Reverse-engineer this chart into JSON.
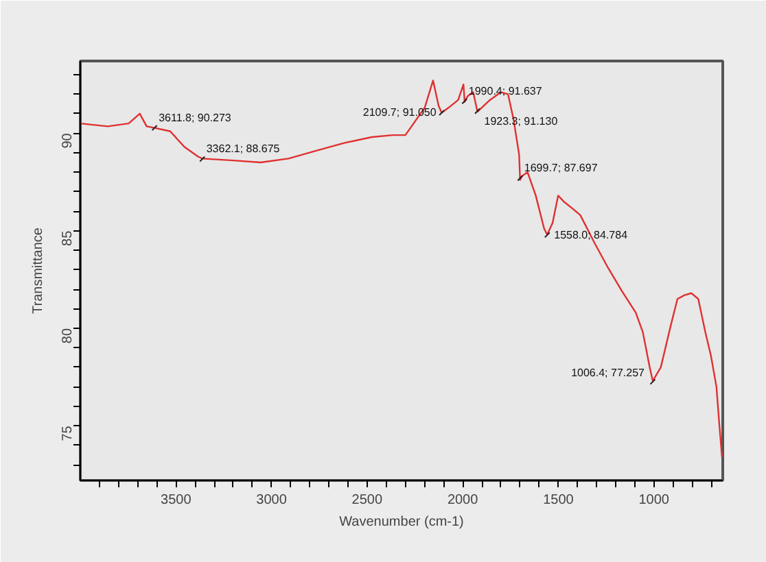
{
  "chart_data": {
    "type": "line",
    "xlabel": "Wavenumber (cm-1)",
    "ylabel": "Transmittance",
    "xlim": [
      4000,
      640
    ],
    "ylim": [
      72.2,
      93.7
    ],
    "xticks": [
      {
        "value": 3900,
        "label": null
      },
      {
        "value": 3800,
        "label": null
      },
      {
        "value": 3700,
        "label": null
      },
      {
        "value": 3600,
        "label": null
      },
      3500,
      {
        "value": 3400,
        "label": null
      },
      {
        "value": 3300,
        "label": null
      },
      {
        "value": 3200,
        "label": null
      },
      {
        "value": 3100,
        "label": null
      },
      3000,
      {
        "value": 2900,
        "label": null
      },
      {
        "value": 2800,
        "label": null
      },
      {
        "value": 2700,
        "label": null
      },
      {
        "value": 2600,
        "label": null
      },
      2500,
      {
        "value": 2400,
        "label": null
      },
      {
        "value": 2300,
        "label": null
      },
      {
        "value": 2200,
        "label": null
      },
      {
        "value": 2100,
        "label": null
      },
      2000,
      {
        "value": 1900,
        "label": null
      },
      {
        "value": 1800,
        "label": null
      },
      {
        "value": 1700,
        "label": null
      },
      {
        "value": 1600,
        "label": null
      },
      1500,
      {
        "value": 1400,
        "label": null
      },
      {
        "value": 1300,
        "label": null
      },
      {
        "value": 1200,
        "label": null
      },
      {
        "value": 1100,
        "label": null
      },
      1000,
      {
        "value": 900,
        "label": null
      },
      {
        "value": 800,
        "label": null
      },
      {
        "value": 700,
        "label": null
      }
    ],
    "yticks": [
      {
        "value": 73,
        "label": null
      },
      {
        "value": 74,
        "label": null
      },
      75,
      {
        "value": 76,
        "label": null
      },
      {
        "value": 77,
        "label": null
      },
      {
        "value": 78,
        "label": null
      },
      {
        "value": 79,
        "label": null
      },
      80,
      {
        "value": 81,
        "label": null
      },
      {
        "value": 82,
        "label": null
      },
      {
        "value": 83,
        "label": null
      },
      {
        "value": 84,
        "label": null
      },
      85,
      {
        "value": 86,
        "label": null
      },
      {
        "value": 87,
        "label": null
      },
      {
        "value": 88,
        "label": null
      },
      {
        "value": 89,
        "label": null
      },
      90,
      {
        "value": 91,
        "label": null
      },
      {
        "value": 92,
        "label": null
      },
      {
        "value": 93,
        "label": null
      }
    ],
    "grid": false,
    "series": [
      {
        "color": "#e03030",
        "x": [
          4000,
          3856,
          3747,
          3689,
          3653,
          3611,
          3530,
          3456,
          3384,
          3362,
          3200,
          3057,
          2911,
          2766,
          2620,
          2475,
          2366,
          2300,
          2257,
          2199,
          2155,
          2126,
          2110,
          2075,
          2024,
          1996,
          1990,
          1974,
          1945,
          1923,
          1858,
          1800,
          1763,
          1734,
          1705,
          1700,
          1690,
          1661,
          1618,
          1574,
          1558,
          1530,
          1501,
          1472,
          1421,
          1385,
          1312,
          1240,
          1167,
          1095,
          1058,
          1022,
          1006,
          964,
          913,
          877,
          840,
          804,
          768,
          731,
          702,
          673,
          659,
          644
        ],
        "values": [
          90.5,
          90.35,
          90.5,
          91.0,
          90.35,
          90.27,
          90.1,
          89.3,
          88.8,
          88.7,
          88.6,
          88.5,
          88.7,
          89.1,
          89.5,
          89.8,
          89.9,
          89.9,
          90.5,
          91.3,
          92.7,
          91.4,
          91.05,
          91.3,
          91.7,
          92.5,
          91.6,
          91.9,
          92.1,
          91.1,
          91.7,
          92.1,
          92.0,
          90.7,
          88.9,
          87.6,
          87.8,
          88.0,
          86.8,
          85.1,
          84.8,
          85.4,
          86.8,
          86.5,
          86.1,
          85.8,
          84.4,
          83.1,
          81.9,
          80.8,
          79.8,
          78.0,
          77.3,
          78.0,
          80.1,
          81.5,
          81.7,
          81.8,
          81.5,
          79.8,
          78.6,
          77.0,
          75.2,
          73.4
        ]
      }
    ],
    "annotations": [
      {
        "text": "3611.8; 90.273",
        "x": 3611.8,
        "y": 90.273
      },
      {
        "text": "3362.1; 88.675",
        "x": 3362.1,
        "y": 88.675
      },
      {
        "text": "2109.7; 91.050",
        "x": 2109.7,
        "y": 91.05
      },
      {
        "text": "1990.4; 91.637",
        "x": 1990.4,
        "y": 91.637
      },
      {
        "text": "1923.3; 91.130",
        "x": 1923.3,
        "y": 91.13
      },
      {
        "text": "1699.7; 87.697",
        "x": 1699.7,
        "y": 87.697
      },
      {
        "text": "1558.0; 84.784",
        "x": 1558.0,
        "y": 84.784
      },
      {
        "text": "1006.4; 77.257",
        "x": 1006.4,
        "y": 77.257
      }
    ]
  }
}
